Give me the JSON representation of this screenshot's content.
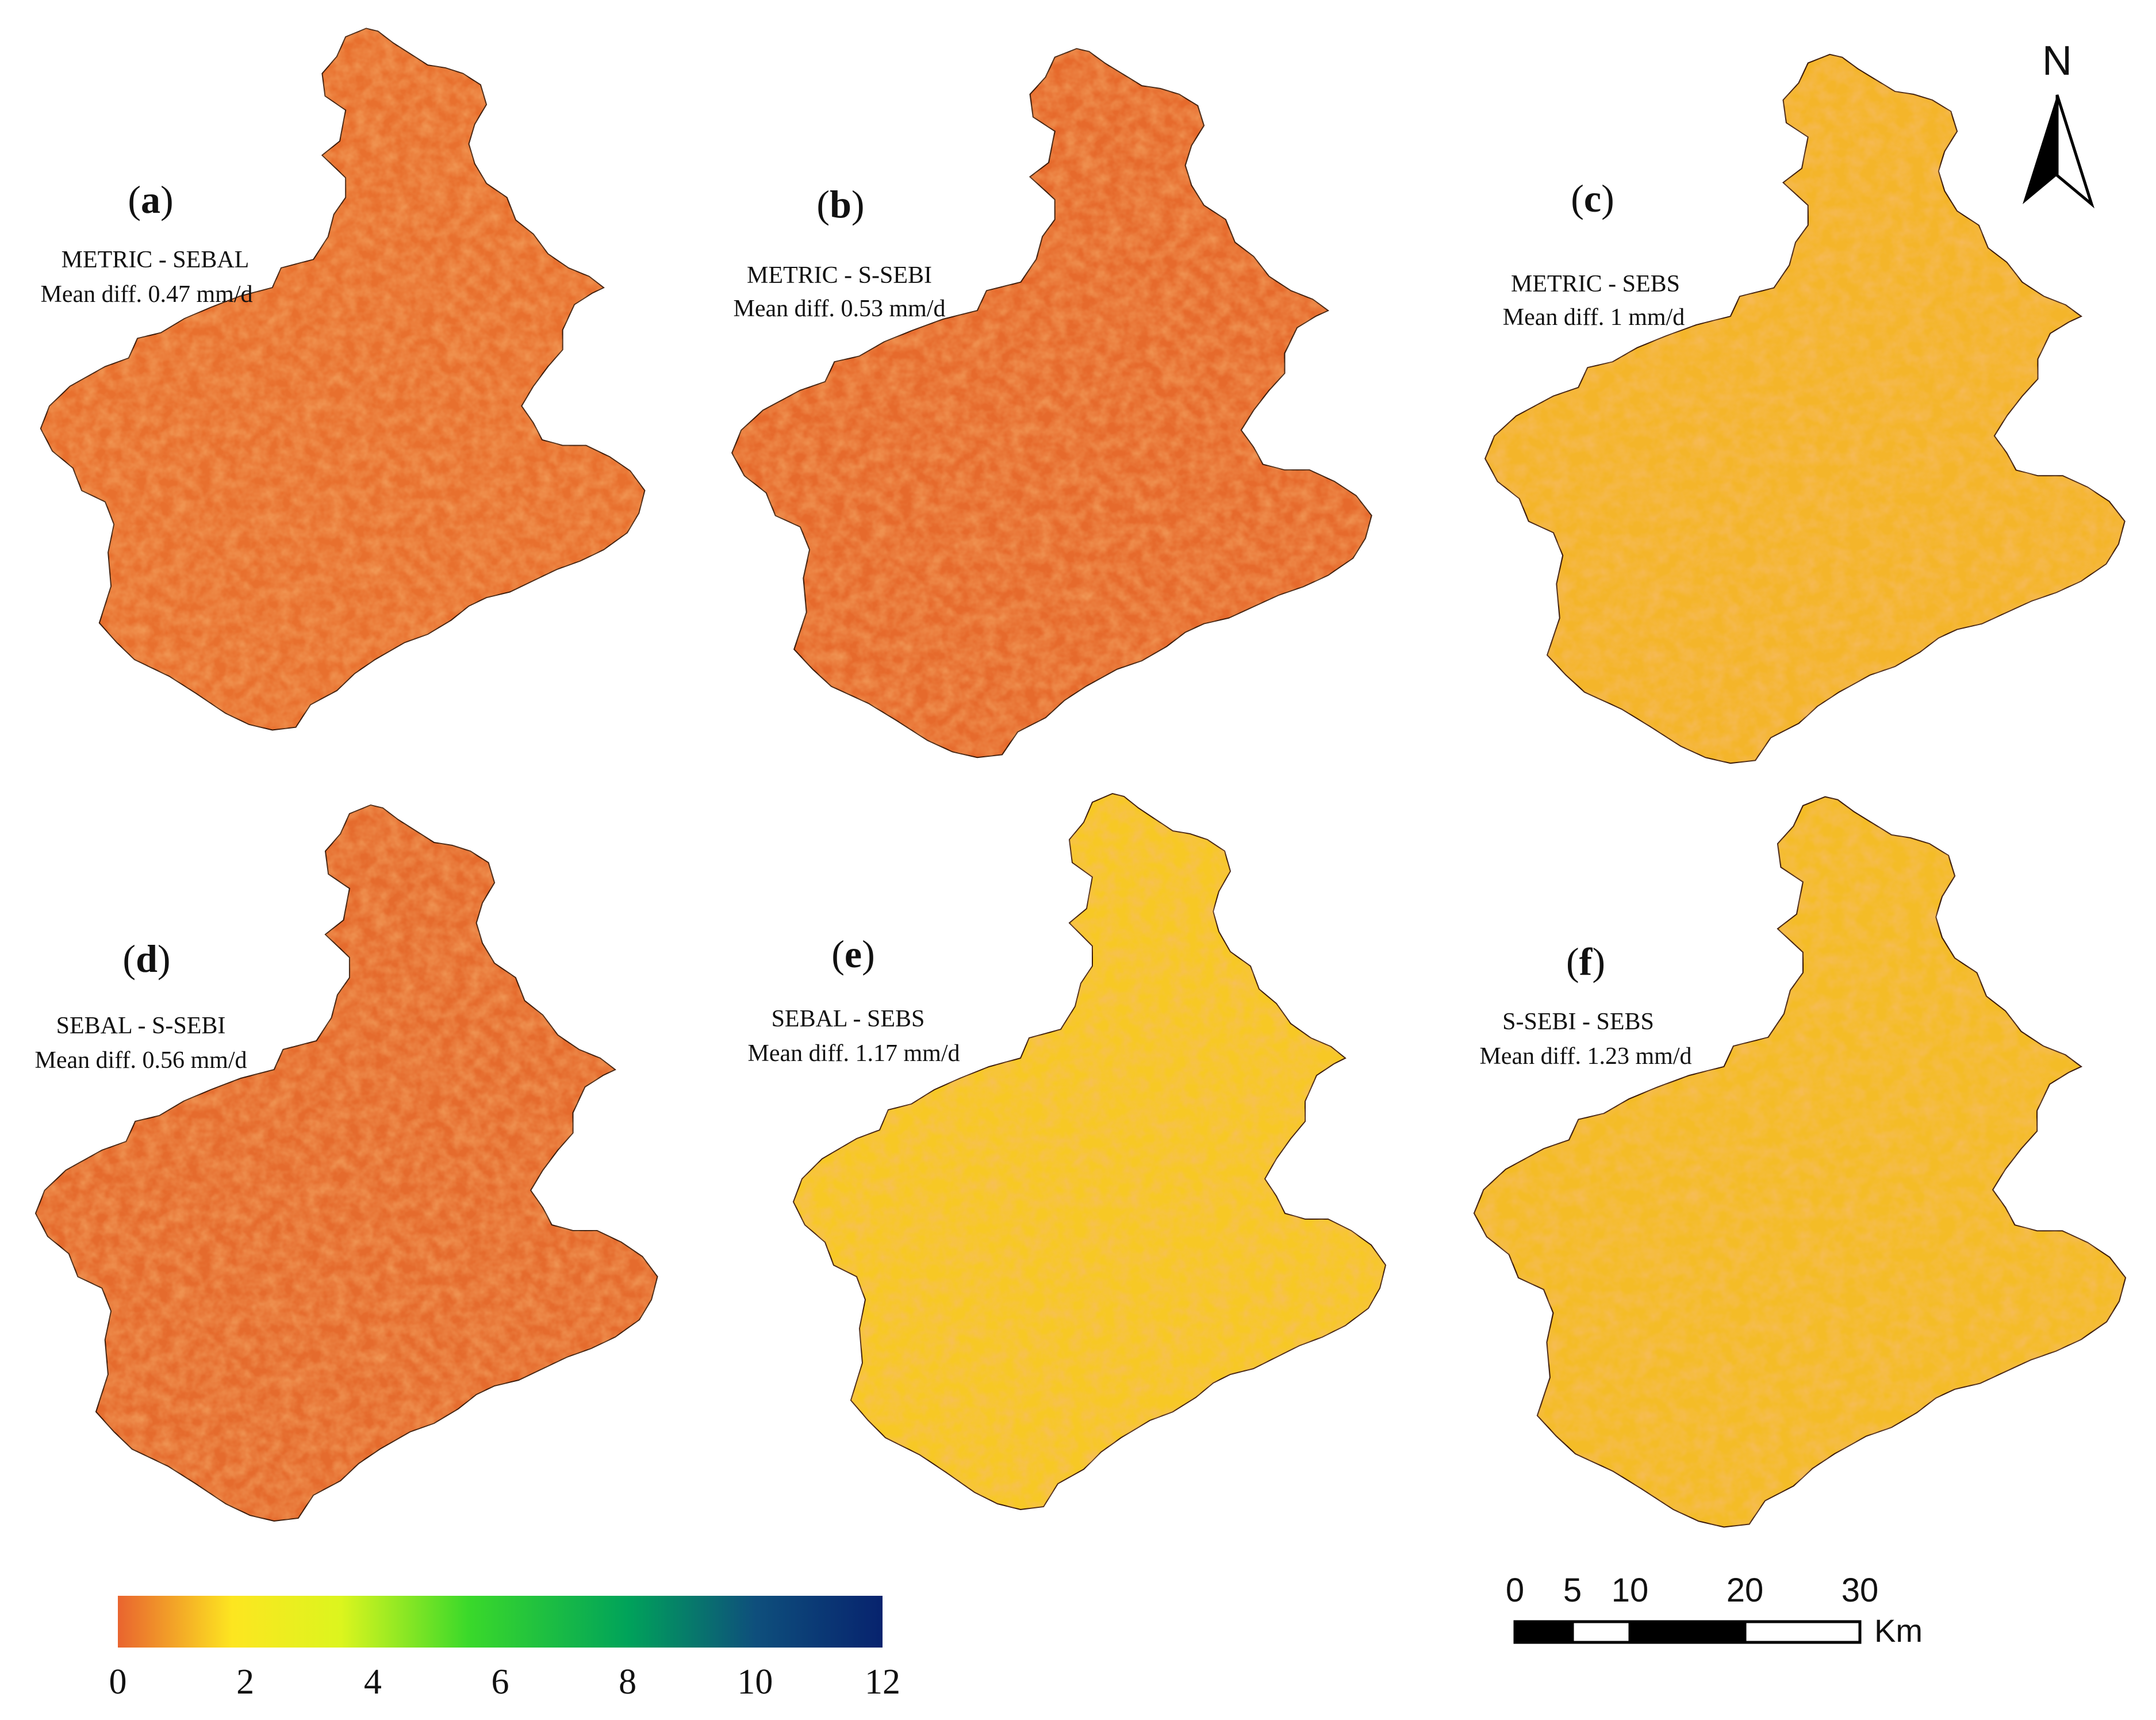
{
  "panels": [
    {
      "letter": "a",
      "title": "METRIC - SEBAL",
      "subtitle": "Mean diff. 0.47 mm/d",
      "palette": "orange"
    },
    {
      "letter": "b",
      "title": "METRIC - S-SEBI",
      "subtitle": "Mean diff. 0.53 mm/d",
      "palette": "orange"
    },
    {
      "letter": "c",
      "title": "METRIC - SEBS",
      "subtitle": "Mean diff. 1 mm/d",
      "palette": "yellow"
    },
    {
      "letter": "d",
      "title": "SEBAL - S-SEBI",
      "subtitle": "Mean diff. 0.56 mm/d",
      "palette": "orange"
    },
    {
      "letter": "e",
      "title": "SEBAL - SEBS",
      "subtitle": "Mean diff. 1.17 mm/d",
      "palette": "yellow"
    },
    {
      "letter": "f",
      "title": "S-SEBI - SEBS",
      "subtitle": "Mean diff. 1.23 mm/d",
      "palette": "yellow"
    }
  ],
  "colorbar": {
    "min": 0,
    "max": 12,
    "ticks": [
      "0",
      "2",
      "4",
      "6",
      "8",
      "10",
      "12"
    ],
    "stops": [
      {
        "value": 0,
        "color": "#e9642f"
      },
      {
        "value": 1.8,
        "color": "#fde620"
      },
      {
        "value": 3.5,
        "color": "#dcf51e"
      },
      {
        "value": 5.5,
        "color": "#3ad92a"
      },
      {
        "value": 8,
        "color": "#00a35a"
      },
      {
        "value": 10,
        "color": "#0e4f7c"
      },
      {
        "value": 12,
        "color": "#07236e"
      }
    ]
  },
  "north_arrow": {
    "label": "N"
  },
  "scale_bar": {
    "ticks": [
      "0",
      "5",
      "10",
      "20",
      "30"
    ],
    "tick_values": [
      0,
      5,
      10,
      20,
      30
    ],
    "unit": "Km"
  },
  "colors": {
    "orange_base": "#e8702e",
    "orange_mid": "#ef8a32",
    "yellow_base": "#f6c21f",
    "yellow_mid": "#fbe224",
    "outline": "#000000"
  }
}
